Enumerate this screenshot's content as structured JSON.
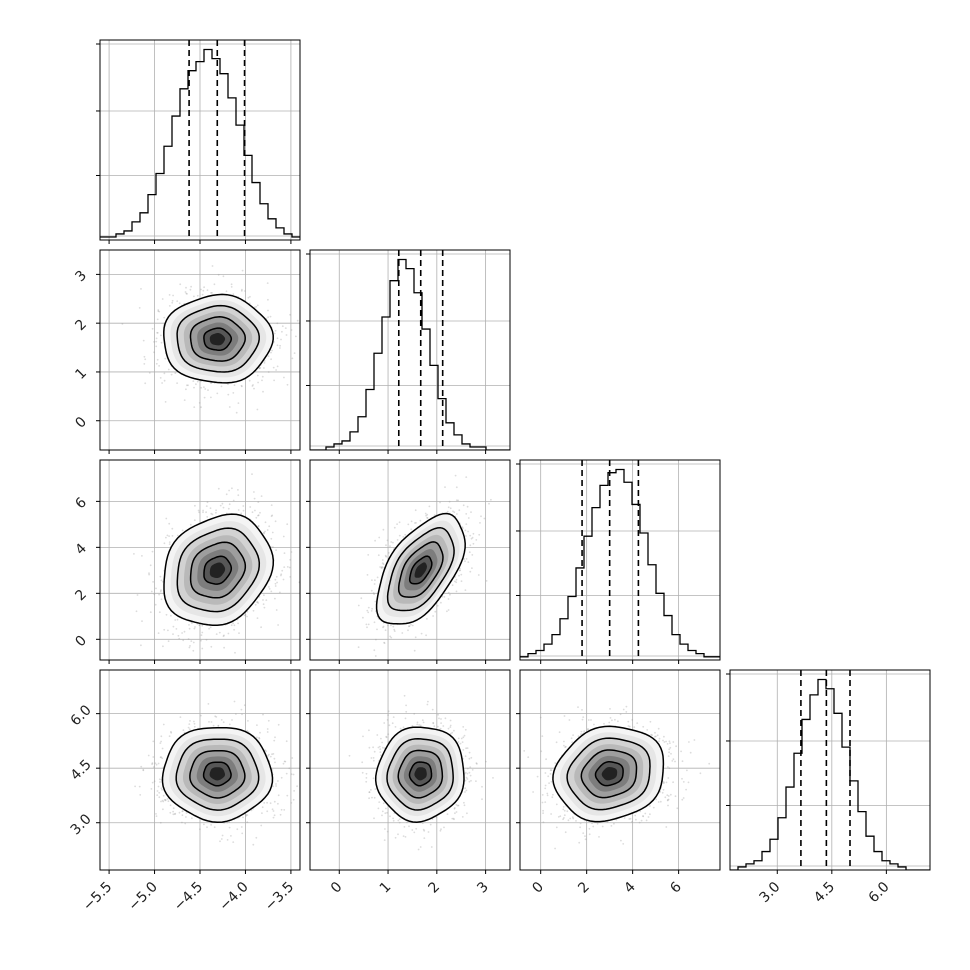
{
  "chart_data": {
    "type": "corner",
    "grid": true,
    "params": [
      {
        "index": 0,
        "range": [
          -5.6,
          -3.4
        ],
        "ticks": [
          "−5.5",
          "−5.0",
          "−4.5",
          "−4.0",
          "−3.5"
        ],
        "tick_values": [
          -5.5,
          -5.0,
          -4.5,
          -4.0,
          -3.5
        ],
        "quantiles": [
          -4.62,
          -4.31,
          -4.01
        ],
        "mean": -4.31,
        "sd": 0.3
      },
      {
        "index": 1,
        "range": [
          -0.6,
          3.5
        ],
        "ticks": [
          "0",
          "1",
          "2",
          "3"
        ],
        "tick_values": [
          0,
          1,
          2,
          3
        ],
        "quantiles": [
          1.22,
          1.67,
          2.12
        ],
        "mean": 1.67,
        "sd": 0.45
      },
      {
        "index": 2,
        "range": [
          -0.9,
          7.8
        ],
        "ticks": [
          "0",
          "2",
          "4",
          "6"
        ],
        "tick_values": [
          0,
          2,
          4,
          6
        ],
        "quantiles": [
          1.8,
          3.0,
          4.25
        ],
        "mean": 3.0,
        "sd": 1.2
      },
      {
        "index": 3,
        "range": [
          1.7,
          7.2
        ],
        "ticks": [
          "3.0",
          "4.5",
          "6.0"
        ],
        "tick_values": [
          3.0,
          4.5,
          6.0
        ],
        "quantiles": [
          3.65,
          4.35,
          5.0
        ],
        "mean": 4.35,
        "sd": 0.65
      }
    ],
    "correlations": [
      {
        "pair": [
          0,
          1
        ],
        "r": 0.0
      },
      {
        "pair": [
          0,
          2
        ],
        "r": 0.18
      },
      {
        "pair": [
          1,
          2
        ],
        "r": 0.55
      },
      {
        "pair": [
          0,
          3
        ],
        "r": 0.0
      },
      {
        "pair": [
          1,
          3
        ],
        "r": 0.05
      },
      {
        "pair": [
          2,
          3
        ],
        "r": 0.12
      }
    ],
    "histograms": [
      [
        1,
        1,
        2,
        3,
        6,
        9,
        15,
        22,
        31,
        41,
        50,
        56,
        59,
        63,
        60,
        55,
        47,
        38,
        28,
        19,
        12,
        7,
        4,
        2,
        1
      ],
      [
        0,
        0,
        1,
        2,
        3,
        6,
        11,
        20,
        32,
        44,
        56,
        63,
        60,
        52,
        40,
        28,
        17,
        9,
        5,
        2,
        1,
        1,
        0,
        0,
        0
      ],
      [
        1,
        2,
        3,
        5,
        8,
        13,
        20,
        29,
        39,
        48,
        55,
        59,
        60,
        56,
        49,
        40,
        30,
        21,
        14,
        8,
        5,
        3,
        2,
        1,
        1
      ],
      [
        0,
        1,
        2,
        3,
        6,
        10,
        17,
        27,
        38,
        49,
        57,
        62,
        59,
        51,
        40,
        29,
        19,
        11,
        6,
        3,
        2,
        1,
        0,
        0,
        0
      ]
    ]
  },
  "style": {
    "axis_color": "#000000",
    "grid_color": "#b0b0b0",
    "point_color": "#9a9a9a",
    "hist_color": "#000000"
  }
}
